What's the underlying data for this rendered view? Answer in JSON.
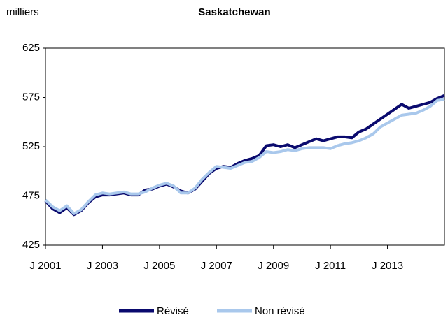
{
  "chart_data": {
    "type": "line",
    "title": "Saskatchewan",
    "y_label": "milliers",
    "categories": [
      "J 2001",
      null,
      null,
      null,
      null,
      null,
      null,
      null,
      "J 2003",
      null,
      null,
      null,
      null,
      null,
      null,
      null,
      "J 2005",
      null,
      null,
      null,
      null,
      null,
      null,
      null,
      "J 2007",
      null,
      null,
      null,
      null,
      null,
      null,
      null,
      "J 2009",
      null,
      null,
      null,
      null,
      null,
      null,
      null,
      "J 2011",
      null,
      null,
      null,
      null,
      null,
      null,
      null,
      "J 2013",
      null,
      null,
      null,
      null,
      null,
      null,
      null,
      null
    ],
    "series": [
      {
        "name": "Révisé",
        "color": "#0a0a6e",
        "values": [
          470,
          462,
          458,
          463,
          456,
          460,
          468,
          474,
          476,
          476,
          477,
          478,
          476,
          476,
          481,
          482,
          485,
          487,
          484,
          480,
          478,
          482,
          490,
          498,
          503,
          505,
          504,
          508,
          511,
          513,
          516,
          526,
          527,
          525,
          527,
          524,
          527,
          530,
          533,
          531,
          533,
          535,
          535,
          534,
          540,
          543,
          548,
          553,
          558,
          563,
          568,
          564,
          566,
          568,
          570,
          574,
          577
        ]
      },
      {
        "name": "Non révisé",
        "color": "#a9c8ec",
        "values": [
          471,
          464,
          460,
          465,
          457,
          461,
          469,
          476,
          478,
          477,
          478,
          479,
          477,
          477,
          479,
          483,
          486,
          488,
          485,
          478,
          478,
          483,
          492,
          499,
          505,
          504,
          503,
          506,
          509,
          510,
          514,
          520,
          519,
          520,
          522,
          521,
          523,
          524,
          524,
          524,
          523,
          526,
          528,
          529,
          531,
          534,
          538,
          545,
          549,
          553,
          557,
          558,
          559,
          562,
          566,
          572,
          573
        ]
      }
    ],
    "ylim": [
      425,
      625
    ],
    "yticks": [
      425,
      475,
      525,
      575,
      625
    ],
    "grid": false,
    "legend": "bottom"
  }
}
